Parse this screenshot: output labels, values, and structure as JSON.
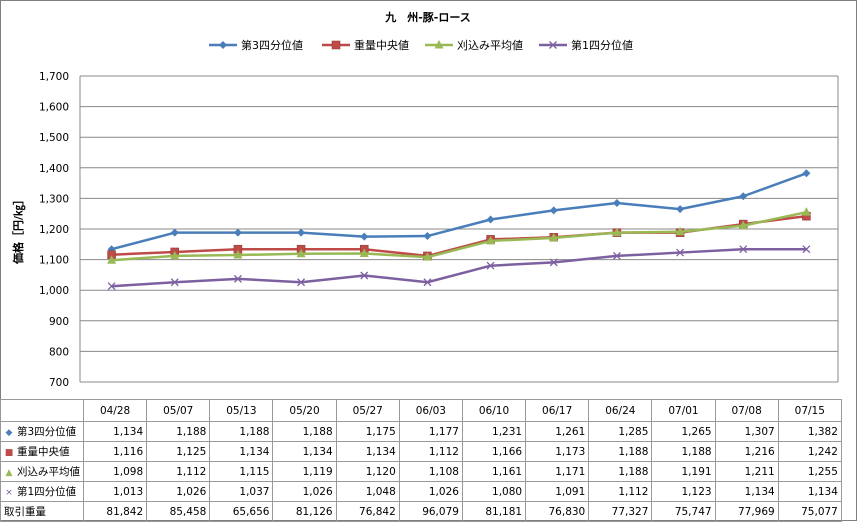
{
  "chart_data": {
    "type": "line",
    "title": "九　州-豚-ロース",
    "ylabel": "価格［円/㎏］",
    "ylim": [
      700,
      1700
    ],
    "yticks": [
      "700",
      "800",
      "900",
      "1,000",
      "1,100",
      "1,200",
      "1,300",
      "1,400",
      "1,500",
      "1,600",
      "1,700"
    ],
    "grid": true,
    "legend_position": "top",
    "categories": [
      "04/28",
      "05/07",
      "05/13",
      "05/20",
      "05/27",
      "06/03",
      "06/10",
      "06/17",
      "06/24",
      "07/01",
      "07/08",
      "07/15"
    ],
    "series": [
      {
        "name": "第3四分位値",
        "color": "#4a7ebb",
        "marker": "diamond",
        "values": [
          1134,
          1188,
          1188,
          1188,
          1175,
          1177,
          1231,
          1261,
          1285,
          1265,
          1307,
          1382
        ],
        "labels": [
          "1,134",
          "1,188",
          "1,188",
          "1,188",
          "1,175",
          "1,177",
          "1,231",
          "1,261",
          "1,285",
          "1,265",
          "1,307",
          "1,382"
        ]
      },
      {
        "name": "重量中央値",
        "color": "#be4b48",
        "marker": "square",
        "values": [
          1116,
          1125,
          1134,
          1134,
          1134,
          1112,
          1166,
          1173,
          1188,
          1188,
          1216,
          1242
        ],
        "labels": [
          "1,116",
          "1,125",
          "1,134",
          "1,134",
          "1,134",
          "1,112",
          "1,166",
          "1,173",
          "1,188",
          "1,188",
          "1,216",
          "1,242"
        ]
      },
      {
        "name": "刈込み平均値",
        "color": "#98b954",
        "marker": "triangle",
        "values": [
          1098,
          1112,
          1115,
          1119,
          1120,
          1108,
          1161,
          1171,
          1188,
          1191,
          1211,
          1255
        ],
        "labels": [
          "1,098",
          "1,112",
          "1,115",
          "1,119",
          "1,120",
          "1,108",
          "1,161",
          "1,171",
          "1,188",
          "1,191",
          "1,211",
          "1,255"
        ]
      },
      {
        "name": "第1四分位値",
        "color": "#7d60a0",
        "marker": "x",
        "values": [
          1013,
          1026,
          1037,
          1026,
          1048,
          1026,
          1080,
          1091,
          1112,
          1123,
          1134,
          1134
        ],
        "labels": [
          "1,013",
          "1,026",
          "1,037",
          "1,026",
          "1,048",
          "1,026",
          "1,080",
          "1,091",
          "1,112",
          "1,123",
          "1,134",
          "1,134"
        ]
      }
    ],
    "volume": {
      "name": "取引重量",
      "values": [
        81842,
        85458,
        65656,
        81126,
        76842,
        96079,
        81181,
        76830,
        77327,
        75747,
        77969,
        75077
      ],
      "labels": [
        "81,842",
        "85,458",
        "65,656",
        "81,126",
        "76,842",
        "96,079",
        "81,181",
        "76,830",
        "77,327",
        "75,747",
        "77,969",
        "75,077"
      ]
    }
  }
}
